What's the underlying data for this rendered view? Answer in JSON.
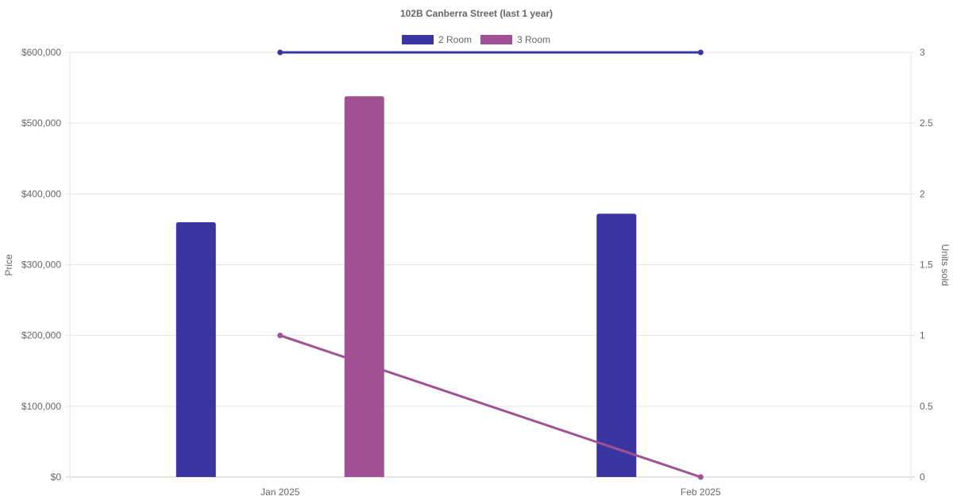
{
  "chart_data": {
    "type": "bar",
    "title": "102B Canberra Street (last 1 year)",
    "categories": [
      "Jan 2025",
      "Feb 2025"
    ],
    "y_left": {
      "label": "Price",
      "range": [
        0,
        600000
      ],
      "ticks": [
        "$0",
        "$100,000",
        "$200,000",
        "$300,000",
        "$400,000",
        "$500,000",
        "$600,000"
      ]
    },
    "y_right": {
      "label": "Units sold",
      "range": [
        0,
        3
      ],
      "ticks": [
        "0",
        "0.5",
        "1",
        "1.5",
        "2",
        "2.5",
        "3"
      ]
    },
    "grid": true,
    "legend": {
      "placement": "top",
      "entries": [
        "2 Room",
        "3 Room"
      ]
    },
    "series": [
      {
        "name": "2 Room",
        "color": "#3a35a0",
        "price": [
          360000,
          372000
        ],
        "units_sold": [
          3,
          3
        ]
      },
      {
        "name": "3 Room",
        "color": "#a05193",
        "price": [
          538000,
          null
        ],
        "units_sold": [
          1,
          0
        ]
      }
    ]
  }
}
